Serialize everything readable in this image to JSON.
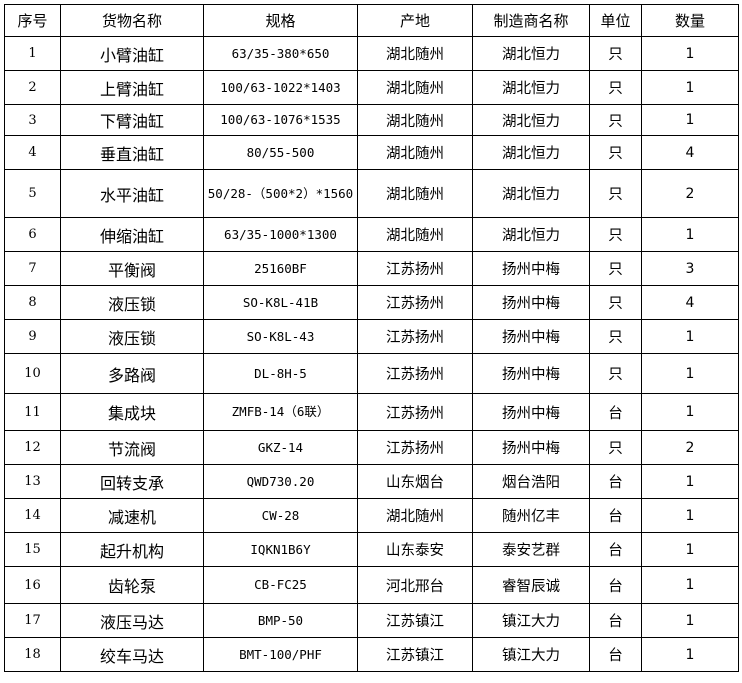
{
  "columns": [
    "序号",
    "货物名称",
    "规格",
    "产地",
    "制造商名称",
    "单位",
    "数量"
  ],
  "rows": [
    {
      "no": "1",
      "name": "小臂油缸",
      "spec": "63/35-380*650",
      "origin": "湖北随州",
      "maker": "湖北恒力",
      "unit": "只",
      "qty": "1"
    },
    {
      "no": "2",
      "name": "上臂油缸",
      "spec": "100/63-1022*1403",
      "origin": "湖北随州",
      "maker": "湖北恒力",
      "unit": "只",
      "qty": "1"
    },
    {
      "no": "3",
      "name": "下臂油缸",
      "spec": "100/63-1076*1535",
      "origin": "湖北随州",
      "maker": "湖北恒力",
      "unit": "只",
      "qty": "1"
    },
    {
      "no": "4",
      "name": "垂直油缸",
      "spec": "80/55-500",
      "origin": "湖北随州",
      "maker": "湖北恒力",
      "unit": "只",
      "qty": "4"
    },
    {
      "no": "5",
      "name": "水平油缸",
      "spec": "50/28-（500*2）*1560",
      "origin": "湖北随州",
      "maker": "湖北恒力",
      "unit": "只",
      "qty": "2"
    },
    {
      "no": "6",
      "name": "伸缩油缸",
      "spec": "63/35-1000*1300",
      "origin": "湖北随州",
      "maker": "湖北恒力",
      "unit": "只",
      "qty": "1"
    },
    {
      "no": "7",
      "name": "平衡阀",
      "spec": "25160BF",
      "origin": "江苏扬州",
      "maker": "扬州中梅",
      "unit": "只",
      "qty": "3"
    },
    {
      "no": "8",
      "name": "液压锁",
      "spec": "SO-K8L-41B",
      "origin": "江苏扬州",
      "maker": "扬州中梅",
      "unit": "只",
      "qty": "4"
    },
    {
      "no": "9",
      "name": "液压锁",
      "spec": "SO-K8L-43",
      "origin": "江苏扬州",
      "maker": "扬州中梅",
      "unit": "只",
      "qty": "1"
    },
    {
      "no": "10",
      "name": "多路阀",
      "spec": "DL-8H-5",
      "origin": "江苏扬州",
      "maker": "扬州中梅",
      "unit": "只",
      "qty": "1"
    },
    {
      "no": "11",
      "name": "集成块",
      "spec": "ZMFB-14（6联）",
      "origin": "江苏扬州",
      "maker": "扬州中梅",
      "unit": "台",
      "qty": "1"
    },
    {
      "no": "12",
      "name": "节流阀",
      "spec": "GKZ-14",
      "origin": "江苏扬州",
      "maker": "扬州中梅",
      "unit": "只",
      "qty": "2"
    },
    {
      "no": "13",
      "name": "回转支承",
      "spec": "QWD730.20",
      "origin": "山东烟台",
      "maker": "烟台浩阳",
      "unit": "台",
      "qty": "1"
    },
    {
      "no": "14",
      "name": "减速机",
      "spec": "CW-28",
      "origin": "湖北随州",
      "maker": "随州亿丰",
      "unit": "台",
      "qty": "1"
    },
    {
      "no": "15",
      "name": "起升机构",
      "spec": "IQKN1B6Y",
      "origin": "山东泰安",
      "maker": "泰安艺群",
      "unit": "台",
      "qty": "1"
    },
    {
      "no": "16",
      "name": "齿轮泵",
      "spec": "CB-FC25",
      "origin": "河北邢台",
      "maker": "睿智辰诚",
      "unit": "台",
      "qty": "1"
    },
    {
      "no": "17",
      "name": "液压马达",
      "spec": "BMP-50",
      "origin": "江苏镇江",
      "maker": "镇江大力",
      "unit": "台",
      "qty": "1"
    },
    {
      "no": "18",
      "name": "绞车马达",
      "spec": "BMT-100/PHF",
      "origin": "江苏镇江",
      "maker": "镇江大力",
      "unit": "台",
      "qty": "1"
    }
  ]
}
